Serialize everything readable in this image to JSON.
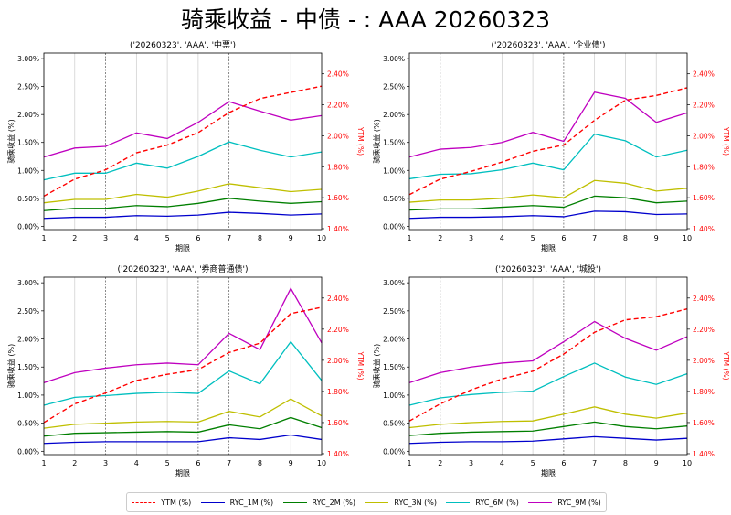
{
  "title": "骑乘收益 - 中债 - : AAA 20260323",
  "legend": [
    {
      "label": "YTM (%)",
      "color": "#ff0000",
      "dash": true
    },
    {
      "label": "RYC_1M (%)",
      "color": "#0000cc",
      "dash": false
    },
    {
      "label": "RYC_2M (%)",
      "color": "#007f00",
      "dash": false
    },
    {
      "label": "RYC_3N (%)",
      "color": "#bfbf00",
      "dash": false
    },
    {
      "label": "RYC_6M (%)",
      "color": "#00bfbf",
      "dash": false
    },
    {
      "label": "RYC_9M (%)",
      "color": "#bf00bf",
      "dash": false
    }
  ],
  "chart_data": [
    {
      "type": "line",
      "title": "('20260323', 'AAA', '中票')",
      "xlabel": "期限",
      "ylabel": "骑乘收益 (%)",
      "ylabel_right": "YTM (%)",
      "x": [
        1,
        2,
        3,
        4,
        5,
        6,
        7,
        8,
        9,
        10
      ],
      "xlim": [
        1,
        10
      ],
      "ylim": [
        -0.06,
        3.1
      ],
      "ylim_right": [
        1.394,
        2.534
      ],
      "yticks": [
        "0.00%",
        "0.50%",
        "1.00%",
        "1.50%",
        "2.00%",
        "2.50%",
        "3.00%"
      ],
      "yticks_right": [
        "1.40%",
        "1.60%",
        "1.80%",
        "2.00%",
        "2.20%",
        "2.40%"
      ],
      "xgrid": true,
      "highlight_x": [
        3,
        7
      ],
      "ytm": [
        1.61,
        1.72,
        1.78,
        1.89,
        1.94,
        2.02,
        2.15,
        2.24,
        2.28,
        2.32
      ],
      "series": [
        {
          "name": "RYC_1M (%)",
          "values": [
            0.14,
            0.16,
            0.16,
            0.19,
            0.18,
            0.2,
            0.25,
            0.23,
            0.2,
            0.22
          ]
        },
        {
          "name": "RYC_2M (%)",
          "values": [
            0.28,
            0.32,
            0.32,
            0.37,
            0.35,
            0.41,
            0.5,
            0.45,
            0.41,
            0.44
          ]
        },
        {
          "name": "RYC_3N (%)",
          "values": [
            0.42,
            0.48,
            0.48,
            0.57,
            0.52,
            0.63,
            0.76,
            0.69,
            0.62,
            0.66
          ]
        },
        {
          "name": "RYC_6M (%)",
          "values": [
            0.83,
            0.95,
            0.95,
            1.13,
            1.04,
            1.25,
            1.51,
            1.36,
            1.24,
            1.33
          ]
        },
        {
          "name": "RYC_9M (%)",
          "values": [
            1.24,
            1.4,
            1.43,
            1.67,
            1.57,
            1.86,
            2.23,
            2.06,
            1.9,
            1.98
          ]
        }
      ]
    },
    {
      "type": "line",
      "title": "('20260323', 'AAA', '企业债')",
      "xlabel": "期限",
      "ylabel": "骑乘收益 (%)",
      "ylabel_right": "YTM (%)",
      "x": [
        1,
        2,
        3,
        4,
        5,
        6,
        7,
        8,
        9,
        10
      ],
      "xlim": [
        1,
        10
      ],
      "ylim": [
        -0.06,
        3.1
      ],
      "ylim_right": [
        1.394,
        2.534
      ],
      "yticks": [
        "0.00%",
        "0.50%",
        "1.00%",
        "1.50%",
        "2.00%",
        "2.50%",
        "3.00%"
      ],
      "yticks_right": [
        "1.40%",
        "1.60%",
        "1.80%",
        "2.00%",
        "2.20%",
        "2.40%"
      ],
      "xgrid": true,
      "highlight_x": [
        2,
        6
      ],
      "ytm": [
        1.62,
        1.72,
        1.77,
        1.83,
        1.9,
        1.94,
        2.1,
        2.23,
        2.26,
        2.31
      ],
      "series": [
        {
          "name": "RYC_1M (%)",
          "values": [
            0.14,
            0.16,
            0.16,
            0.17,
            0.19,
            0.17,
            0.27,
            0.26,
            0.21,
            0.22
          ]
        },
        {
          "name": "RYC_2M (%)",
          "values": [
            0.29,
            0.31,
            0.31,
            0.34,
            0.37,
            0.34,
            0.54,
            0.51,
            0.42,
            0.45
          ]
        },
        {
          "name": "RYC_3N (%)",
          "values": [
            0.43,
            0.47,
            0.47,
            0.5,
            0.56,
            0.51,
            0.82,
            0.77,
            0.63,
            0.68
          ]
        },
        {
          "name": "RYC_6M (%)",
          "values": [
            0.85,
            0.93,
            0.94,
            1.01,
            1.13,
            1.01,
            1.65,
            1.53,
            1.24,
            1.36
          ]
        },
        {
          "name": "RYC_9M (%)",
          "values": [
            1.24,
            1.38,
            1.41,
            1.5,
            1.68,
            1.52,
            2.4,
            2.29,
            1.86,
            2.03
          ]
        }
      ]
    },
    {
      "type": "line",
      "title": "('20260323', 'AAA', '券商普通债')",
      "xlabel": "期限",
      "ylabel": "骑乘收益 (%)",
      "ylabel_right": "YTM (%)",
      "x": [
        1,
        2,
        3,
        4,
        5,
        6,
        7,
        8,
        9,
        10
      ],
      "xlim": [
        1,
        10
      ],
      "ylim": [
        -0.06,
        3.1
      ],
      "ylim_right": [
        1.394,
        2.534
      ],
      "yticks": [
        "0.00%",
        "0.50%",
        "1.00%",
        "1.50%",
        "2.00%",
        "2.50%",
        "3.00%"
      ],
      "yticks_right": [
        "1.40%",
        "1.60%",
        "1.80%",
        "2.00%",
        "2.20%",
        "2.40%"
      ],
      "xgrid": true,
      "highlight_x": [
        3,
        6,
        7
      ],
      "ytm": [
        1.6,
        1.72,
        1.79,
        1.87,
        1.91,
        1.94,
        2.05,
        2.11,
        2.3,
        2.34
      ],
      "series": [
        {
          "name": "RYC_1M (%)",
          "values": [
            0.14,
            0.16,
            0.17,
            0.17,
            0.17,
            0.17,
            0.24,
            0.21,
            0.29,
            0.21
          ]
        },
        {
          "name": "RYC_2M (%)",
          "values": [
            0.27,
            0.32,
            0.33,
            0.34,
            0.35,
            0.34,
            0.47,
            0.4,
            0.6,
            0.42
          ]
        },
        {
          "name": "RYC_3N (%)",
          "values": [
            0.41,
            0.48,
            0.5,
            0.52,
            0.53,
            0.52,
            0.71,
            0.61,
            0.93,
            0.63
          ]
        },
        {
          "name": "RYC_6M (%)",
          "values": [
            0.82,
            0.96,
            0.99,
            1.03,
            1.05,
            1.03,
            1.43,
            1.2,
            1.95,
            1.26
          ]
        },
        {
          "name": "RYC_9M (%)",
          "values": [
            1.22,
            1.4,
            1.48,
            1.54,
            1.57,
            1.54,
            2.1,
            1.81,
            2.9,
            1.93
          ]
        }
      ]
    },
    {
      "type": "line",
      "title": "('20260323', 'AAA', '城投')",
      "xlabel": "期限",
      "ylabel": "骑乘收益 (%)",
      "ylabel_right": "YTM (%)",
      "x": [
        1,
        2,
        3,
        4,
        5,
        6,
        7,
        8,
        9,
        10
      ],
      "xlim": [
        1,
        10
      ],
      "ylim": [
        -0.06,
        3.1
      ],
      "ylim_right": [
        1.394,
        2.534
      ],
      "yticks": [
        "0.00%",
        "0.50%",
        "1.00%",
        "1.50%",
        "2.00%",
        "2.50%",
        "3.00%"
      ],
      "yticks_right": [
        "1.40%",
        "1.60%",
        "1.80%",
        "2.00%",
        "2.20%",
        "2.40%"
      ],
      "xgrid": true,
      "highlight_x": [
        2,
        6
      ],
      "ytm": [
        1.61,
        1.72,
        1.81,
        1.88,
        1.93,
        2.04,
        2.18,
        2.26,
        2.28,
        2.33
      ],
      "series": [
        {
          "name": "RYC_1M (%)",
          "values": [
            0.14,
            0.16,
            0.17,
            0.17,
            0.18,
            0.22,
            0.26,
            0.23,
            0.2,
            0.23
          ]
        },
        {
          "name": "RYC_2M (%)",
          "values": [
            0.28,
            0.32,
            0.34,
            0.35,
            0.36,
            0.44,
            0.52,
            0.44,
            0.4,
            0.45
          ]
        },
        {
          "name": "RYC_3N (%)",
          "values": [
            0.42,
            0.48,
            0.51,
            0.53,
            0.54,
            0.66,
            0.79,
            0.66,
            0.59,
            0.68
          ]
        },
        {
          "name": "RYC_6M (%)",
          "values": [
            0.82,
            0.95,
            1.01,
            1.05,
            1.07,
            1.33,
            1.57,
            1.32,
            1.19,
            1.38
          ]
        },
        {
          "name": "RYC_9M (%)",
          "values": [
            1.22,
            1.4,
            1.5,
            1.57,
            1.61,
            1.95,
            2.31,
            2.01,
            1.8,
            2.04
          ]
        }
      ]
    }
  ]
}
